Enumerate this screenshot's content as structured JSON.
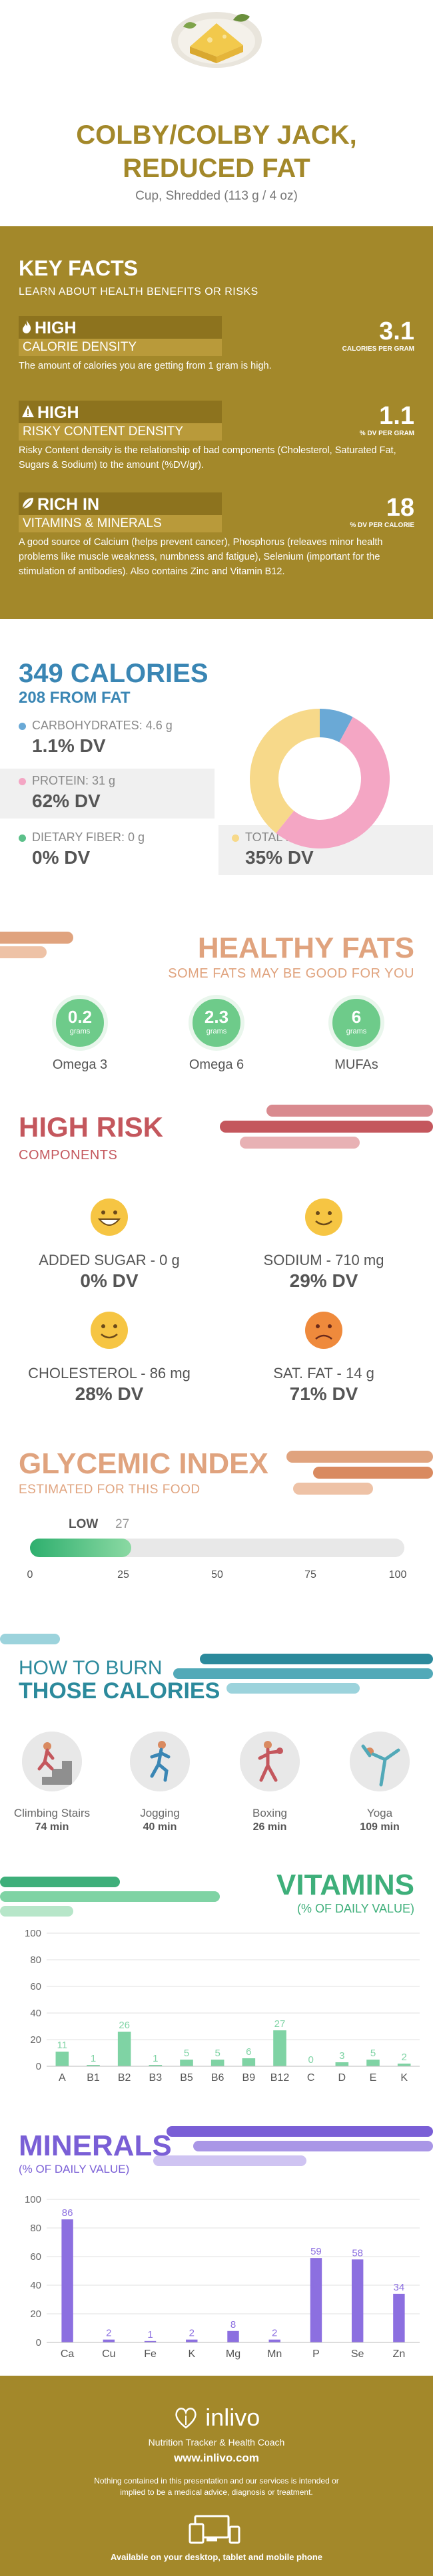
{
  "header": {
    "title_line1": "COLBY/COLBY JACK,",
    "title_line2": "REDUCED FAT",
    "serving": "Cup, Shredded (113 g / 4 oz)"
  },
  "key_facts": {
    "title": "KEY FACTS",
    "subtitle": "LEARN ABOUT HEALTH BENEFITS OR RISKS",
    "items": [
      {
        "level": "HIGH",
        "name": "CALORIE DENSITY",
        "value": "3.1",
        "unit": "CALORIES PER GRAM",
        "desc": "The amount of calories you are getting from 1 gram is high.",
        "icon": "flame-icon"
      },
      {
        "level": "HIGH",
        "name": "RISKY CONTENT DENSITY",
        "value": "1.1",
        "unit": "% DV PER GRAM",
        "desc": "Risky Content density is the relationship of bad components (Cholesterol, Saturated Fat, Sugars & Sodium) to the amount (%DV/gr).",
        "icon": "warning-icon"
      },
      {
        "level": "RICH  IN",
        "name": "VITAMINS & MINERALS",
        "value": "18",
        "unit": "% DV PER CALORIE",
        "desc": "A good source of Calcium (helps prevent cancer), Phosphorus (releaves minor health problems like muscle weakness, numbness and fatigue), Selenium (important for the stimulation of antibodies). Also contains Zinc and Vitamin B12.",
        "icon": "leaf-icon"
      }
    ]
  },
  "calories": {
    "title": "349 CALORIES",
    "from_fat": "208 FROM FAT",
    "carbs_label": "CARBOHYDRATES: 4.6 g",
    "carbs_dv": "1.1% DV",
    "protein_label": "PROTEIN: 31 g",
    "protein_dv": "62% DV",
    "fiber_label": "DIETARY FIBER: 0 g",
    "fiber_dv": "0% DV",
    "fat_label": "TOTAL FAT: 23 g",
    "fat_dv": "35% DV",
    "colors": {
      "carbs": "#6aa9d6",
      "protein": "#f4a6c4",
      "fiber": "#5cc08a",
      "fat": "#f7d98a"
    }
  },
  "chart_data": [
    {
      "type": "pie",
      "categories": [
        "Carbohydrates",
        "Protein",
        "Total Fat"
      ],
      "values": [
        4.6,
        31,
        23
      ]
    },
    {
      "type": "bar",
      "title": "VITAMINS",
      "subtitle": "(% OF DAILY VALUE)",
      "categories": [
        "A",
        "B1",
        "B2",
        "B3",
        "B5",
        "B6",
        "B9",
        "B12",
        "C",
        "D",
        "E",
        "K"
      ],
      "values": [
        11,
        1,
        26,
        1,
        5,
        5,
        6,
        27,
        0,
        3,
        5,
        2
      ],
      "ylim": [
        0,
        100
      ],
      "yticks": [
        0,
        20,
        40,
        60,
        80,
        100
      ],
      "color": "#7fd3a4",
      "grid": true
    },
    {
      "type": "bar",
      "title": "MINERALS",
      "subtitle": "(% OF DAILY VALUE)",
      "categories": [
        "Ca",
        "Cu",
        "Fe",
        "K",
        "Mg",
        "Mn",
        "P",
        "Se",
        "Zn"
      ],
      "values": [
        86,
        2,
        1,
        2,
        8,
        2,
        59,
        58,
        34
      ],
      "ylim": [
        0,
        100
      ],
      "yticks": [
        0,
        20,
        40,
        60,
        80,
        100
      ],
      "color": "#8c6fe0",
      "grid": true
    }
  ],
  "fats": {
    "title": "HEALTHY FATS",
    "subtitle": "SOME FATS MAY BE GOOD FOR YOU",
    "unit": "grams",
    "items": [
      {
        "value": "0.2",
        "label": "Omega 3"
      },
      {
        "value": "2.3",
        "label": "Omega 6"
      },
      {
        "value": "6",
        "label": "MUFAs"
      }
    ]
  },
  "risk": {
    "title": "HIGH RISK",
    "subtitle": "COMPONENTS",
    "items": [
      {
        "label": "ADDED SUGAR - 0 g",
        "dv": "0% DV",
        "face": "grin"
      },
      {
        "label": "SODIUM - 710 mg",
        "dv": "29% DV",
        "face": "smile"
      },
      {
        "label": "CHOLESTEROL - 86 mg",
        "dv": "28% DV",
        "face": "smile"
      },
      {
        "label": "SAT. FAT - 14 g",
        "dv": "71% DV",
        "face": "sad"
      }
    ]
  },
  "glycemic": {
    "title": "GLYCEMIC INDEX",
    "subtitle": "ESTIMATED FOR THIS FOOD",
    "level": "LOW",
    "value": "27",
    "fill_fraction": 0.27,
    "ticks": [
      "0",
      "25",
      "50",
      "75",
      "100"
    ]
  },
  "burn": {
    "title1": "HOW TO BURN",
    "title2": "THOSE CALORIES",
    "items": [
      {
        "label": "Climbing Stairs",
        "time": "74 min",
        "icon": "stairs-icon"
      },
      {
        "label": "Jogging",
        "time": "40 min",
        "icon": "jogging-icon"
      },
      {
        "label": "Boxing",
        "time": "26 min",
        "icon": "boxing-icon"
      },
      {
        "label": "Yoga",
        "time": "109 min",
        "icon": "yoga-icon"
      }
    ]
  },
  "vitamins": {
    "title": "VITAMINS",
    "subtitle": "(% OF DAILY VALUE)"
  },
  "minerals": {
    "title": "MINERALS",
    "subtitle": "(% OF DAILY VALUE)"
  },
  "footer": {
    "brand": "inlivo",
    "tagline": "Nutrition Tracker & Health Coach",
    "url": "www.inlivo.com",
    "disclaimer": "Nothing contained in this presentation and our services is intended or implied to be a medical advice, diagnosis or treatment.",
    "available": "Available on your desktop, tablet and mobile phone"
  }
}
